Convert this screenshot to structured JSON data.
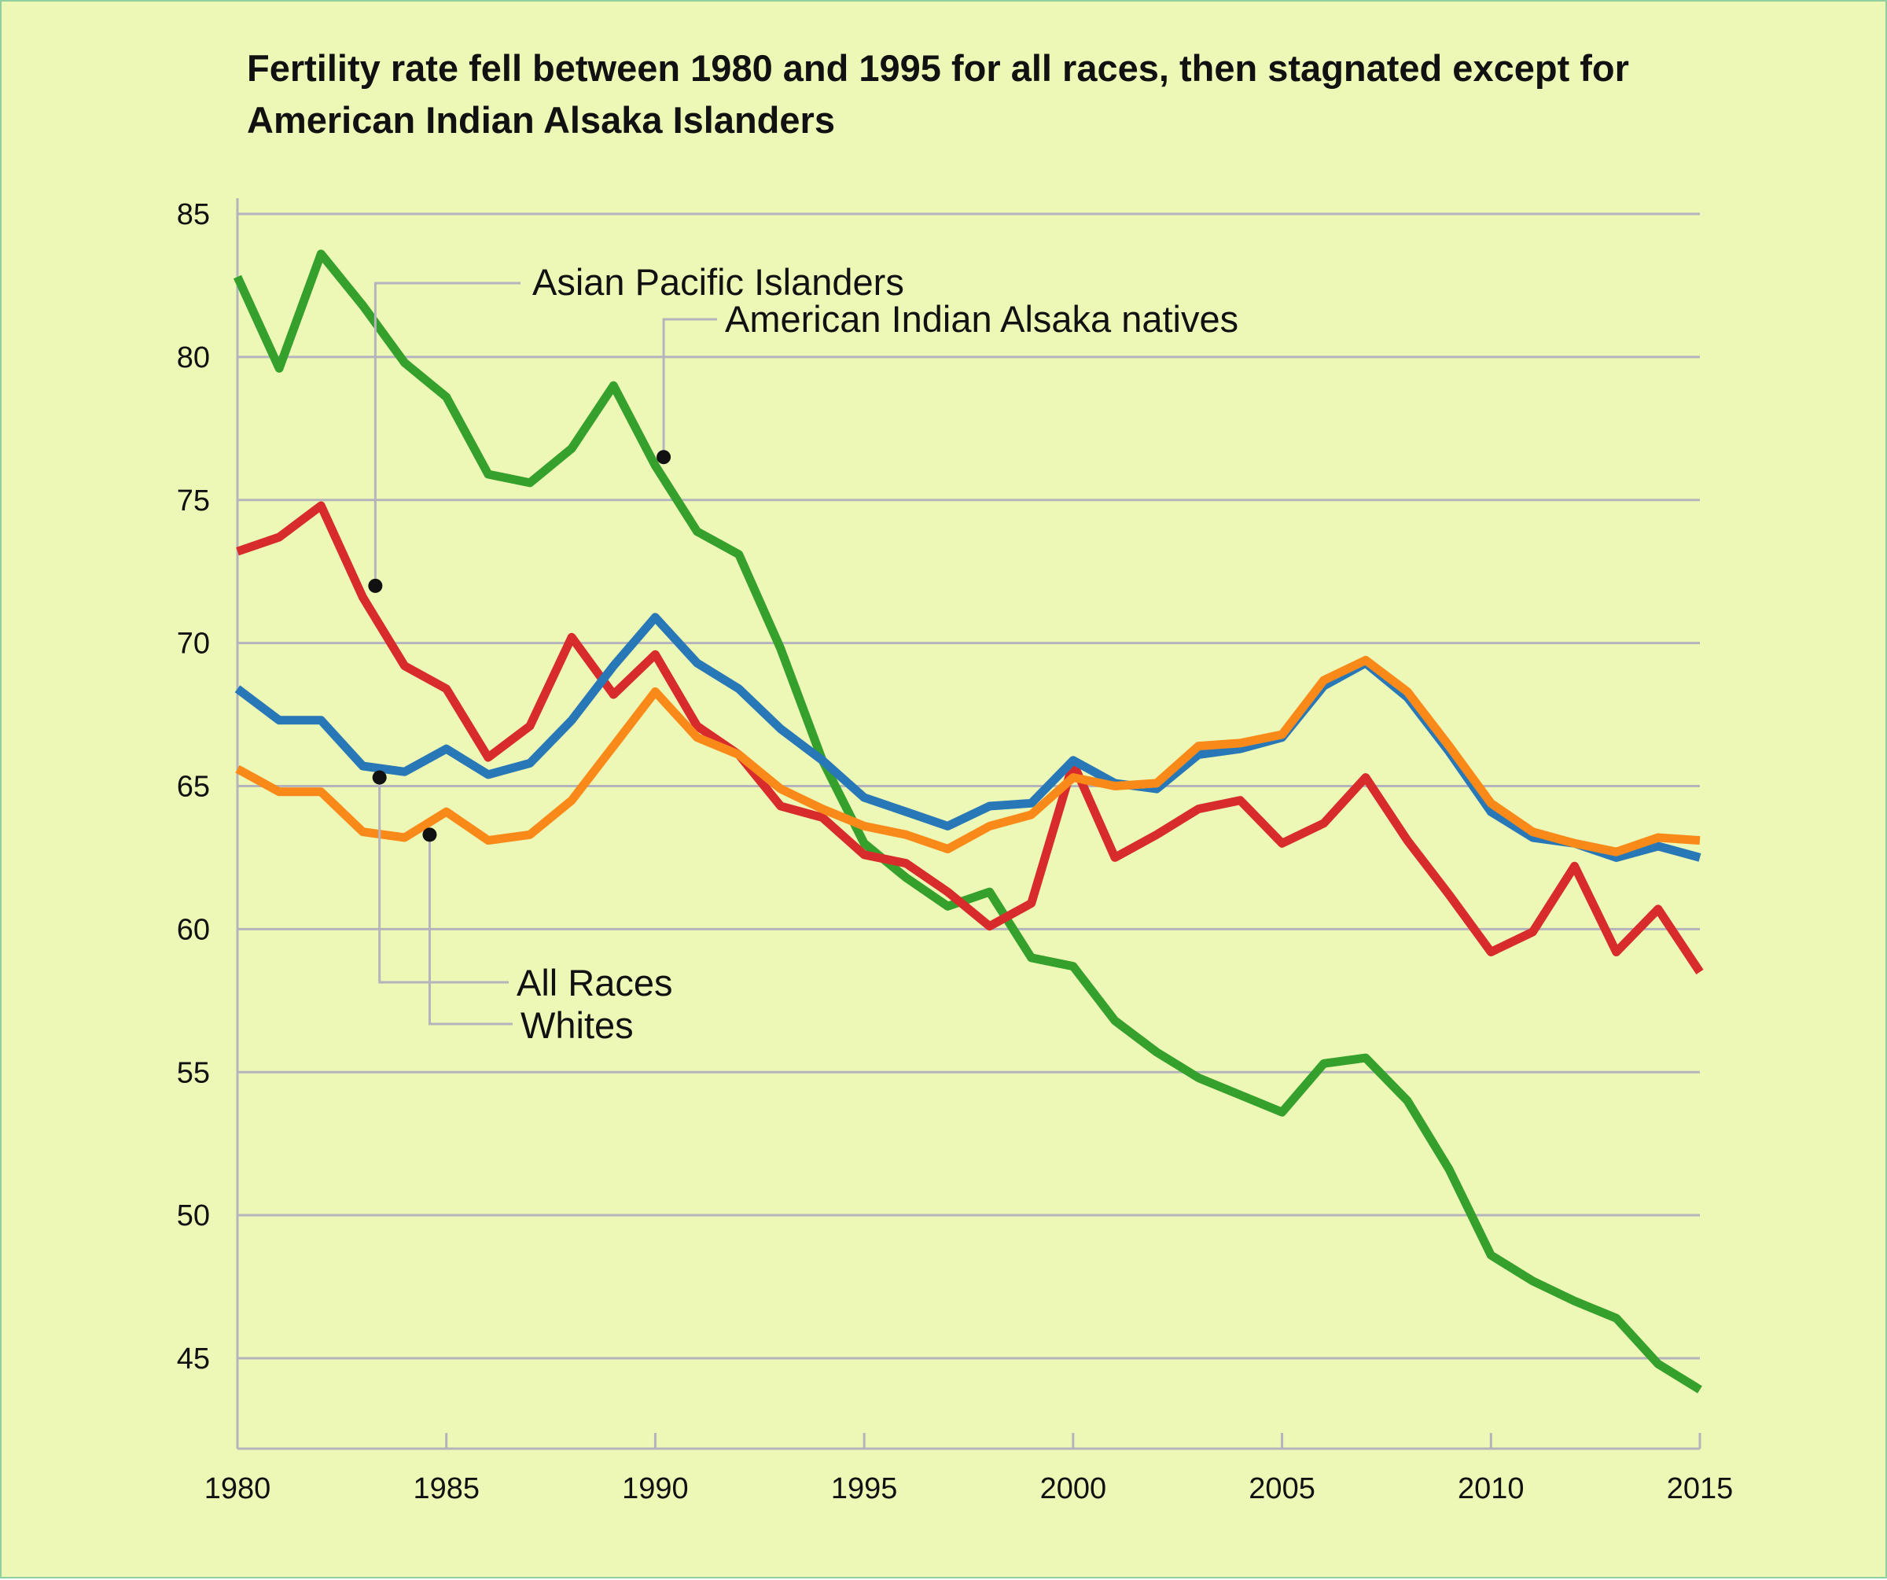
{
  "chart_data": {
    "type": "line",
    "title": "Fertility rate fell between 1980 and 1995 for all races, then  stagnated except for American Indian Alsaka Islanders",
    "xlabel": "",
    "ylabel": "",
    "xlim": [
      1980,
      2015
    ],
    "ylim": [
      42,
      85.5
    ],
    "x_ticks": [
      1980,
      1985,
      1990,
      1995,
      2000,
      2005,
      2010,
      2015
    ],
    "y_ticks": [
      45,
      50,
      55,
      60,
      65,
      70,
      75,
      80,
      85
    ],
    "grid": "horizontal",
    "legend": "none (callout labels)",
    "x": [
      1980,
      1981,
      1982,
      1983,
      1984,
      1985,
      1986,
      1987,
      1988,
      1989,
      1990,
      1991,
      1992,
      1993,
      1994,
      1995,
      1996,
      1997,
      1998,
      1999,
      2000,
      2001,
      2002,
      2003,
      2004,
      2005,
      2006,
      2007,
      2008,
      2009,
      2010,
      2011,
      2012,
      2013,
      2014,
      2015
    ],
    "series": [
      {
        "name": "American Indian Alsaka natives",
        "color": "#36a02c",
        "values": [
          82.8,
          79.6,
          83.6,
          81.8,
          79.8,
          78.6,
          75.9,
          75.6,
          76.8,
          79.0,
          76.2,
          73.9,
          73.1,
          69.8,
          65.9,
          63.0,
          61.8,
          60.8,
          61.3,
          59.0,
          58.7,
          56.8,
          55.7,
          54.8,
          54.2,
          53.6,
          55.3,
          55.5,
          54.0,
          51.6,
          48.6,
          47.7,
          47.0,
          46.4,
          44.8,
          43.9
        ]
      },
      {
        "name": "Asian Pacific Islanders",
        "color": "#d82c2c",
        "values": [
          73.2,
          73.7,
          74.8,
          71.6,
          69.2,
          68.4,
          66.0,
          67.1,
          70.2,
          68.2,
          69.6,
          67.1,
          66.1,
          64.3,
          63.9,
          62.6,
          62.3,
          61.3,
          60.1,
          60.9,
          65.8,
          62.5,
          63.3,
          64.2,
          64.5,
          63.0,
          63.7,
          65.3,
          63.1,
          61.2,
          59.2,
          59.9,
          62.2,
          59.2,
          60.7,
          58.5
        ]
      },
      {
        "name": "All Races",
        "color": "#2878b8",
        "values": [
          68.4,
          67.3,
          67.3,
          65.7,
          65.5,
          66.3,
          65.4,
          65.8,
          67.3,
          69.2,
          70.9,
          69.3,
          68.4,
          67.0,
          65.9,
          64.6,
          64.1,
          63.6,
          64.3,
          64.4,
          65.9,
          65.1,
          64.9,
          66.1,
          66.3,
          66.7,
          68.5,
          69.3,
          68.1,
          66.2,
          64.1,
          63.2,
          63.0,
          62.5,
          62.9,
          62.5
        ]
      },
      {
        "name": "Whites",
        "color": "#f98a1a",
        "values": [
          65.6,
          64.8,
          64.8,
          63.4,
          63.2,
          64.1,
          63.1,
          63.3,
          64.5,
          66.4,
          68.3,
          66.7,
          66.1,
          64.9,
          64.2,
          63.6,
          63.3,
          62.8,
          63.6,
          64.0,
          65.3,
          65.0,
          65.1,
          66.4,
          66.5,
          66.8,
          68.7,
          69.4,
          68.3,
          66.4,
          64.4,
          63.4,
          63.0,
          62.7,
          63.2,
          63.1
        ]
      }
    ],
    "annotations": [
      {
        "label": "Asian Pacific Islanders",
        "series": "Asian Pacific Islanders",
        "point": [
          1983.3,
          72.0
        ]
      },
      {
        "label": "American Indian Alsaka natives",
        "series": "American Indian Alsaka natives",
        "point": [
          1990.2,
          76.5
        ]
      },
      {
        "label": "All Races",
        "series": "All Races",
        "point": [
          1983.4,
          65.3
        ]
      },
      {
        "label": "Whites",
        "series": "Whites",
        "point": [
          1984.6,
          63.3
        ]
      }
    ]
  }
}
